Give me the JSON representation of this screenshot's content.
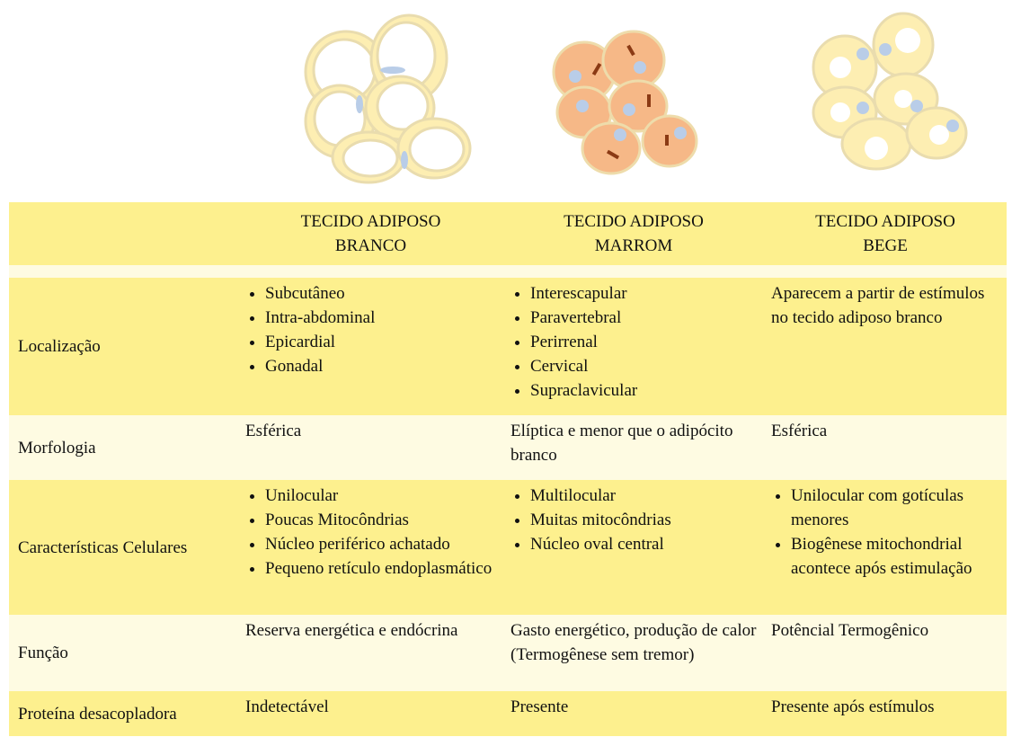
{
  "table": {
    "columns": [
      "TECIDO ADIPOSO BRANCO",
      "TECIDO ADIPOSO MARROM",
      "TECIDO ADIPOSO BEGE"
    ],
    "rows": [
      {
        "label": "Localização",
        "cells": [
          {
            "items": [
              "Subcutâneo",
              "Intra-abdominal",
              "Epicardial",
              "Gonadal"
            ]
          },
          {
            "items": [
              "Interescapular",
              "Paravertebral",
              "Perirrenal",
              "Cervical",
              "Supraclavicular"
            ]
          },
          {
            "text": "Aparecem a partir de estímulos no tecido adiposo branco"
          }
        ]
      },
      {
        "label": "Morfologia",
        "cells": [
          {
            "text": "Esférica"
          },
          {
            "text": "Elíptica e menor que o adipócito branco"
          },
          {
            "text": "Esférica"
          }
        ]
      },
      {
        "label": "Características Celulares",
        "cells": [
          {
            "items": [
              "Unilocular",
              "Poucas Mitocôndrias",
              "Núcleo periférico achatado",
              "Pequeno retículo endoplasmático"
            ]
          },
          {
            "items": [
              "Multilocular",
              "Muitas mitocôndrias",
              "Núcleo oval central"
            ]
          },
          {
            "items": [
              "Unilocular com gotículas menores",
              "Biogênese mitochondrial acontece após estimulação"
            ]
          }
        ]
      },
      {
        "label": "Função",
        "cells": [
          {
            "text": "Reserva energética e endócrina"
          },
          {
            "text": "Gasto energético, produção de calor (Termogênese sem tremor)"
          },
          {
            "text": "Potêncial Termogênico"
          }
        ]
      },
      {
        "label": "Proteína desacopladora",
        "cells": [
          {
            "text": "Indetectável"
          },
          {
            "text": "Presente"
          },
          {
            "text": "Presente após estímulos"
          }
        ]
      }
    ]
  }
}
